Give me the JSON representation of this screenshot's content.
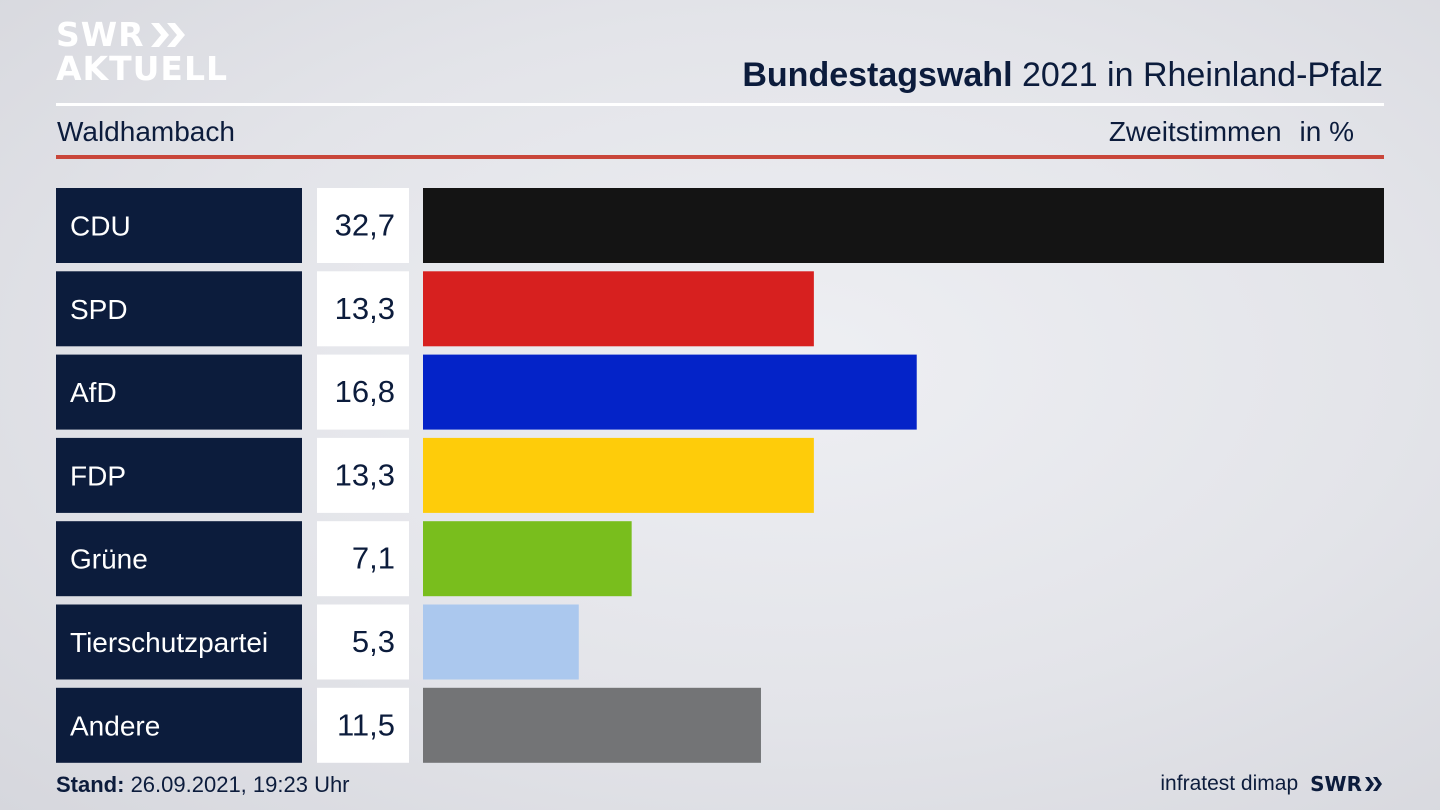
{
  "brand": {
    "logo_line1": "SWR",
    "logo_line2": "AKTUELL"
  },
  "header": {
    "title_bold": "Bundestagswahl",
    "title_rest": " 2021 in Rheinland-Pfalz",
    "location": "Waldhambach",
    "metric": "Zweitstimmen",
    "unit": "in %"
  },
  "chart_data": {
    "type": "bar",
    "orientation": "horizontal",
    "title": "Bundestagswahl 2021 in Rheinland-Pfalz",
    "subtitle": "Waldhambach",
    "xlabel": "Zweitstimmen in %",
    "ylabel": "",
    "xlim": [
      0,
      32.7
    ],
    "categories": [
      "CDU",
      "SPD",
      "AfD",
      "FDP",
      "Grüne",
      "Tierschutzpartei",
      "Andere"
    ],
    "values": [
      32.7,
      13.3,
      16.8,
      13.3,
      7.1,
      5.3,
      11.5
    ],
    "value_labels": [
      "32,7",
      "13,3",
      "16,8",
      "13,3",
      "7,1",
      "5,3",
      "11,5"
    ],
    "colors": [
      "#141414",
      "#d7201f",
      "#0423c8",
      "#fecc0a",
      "#79be1d",
      "#abc8ee",
      "#737476"
    ],
    "label_box_color": "#0c1c3c",
    "grid": false
  },
  "footer": {
    "stand_label": "Stand:",
    "stand_value": " 26.09.2021, 19:23 Uhr",
    "source": "infratest dimap",
    "brand_small": "SWR"
  }
}
